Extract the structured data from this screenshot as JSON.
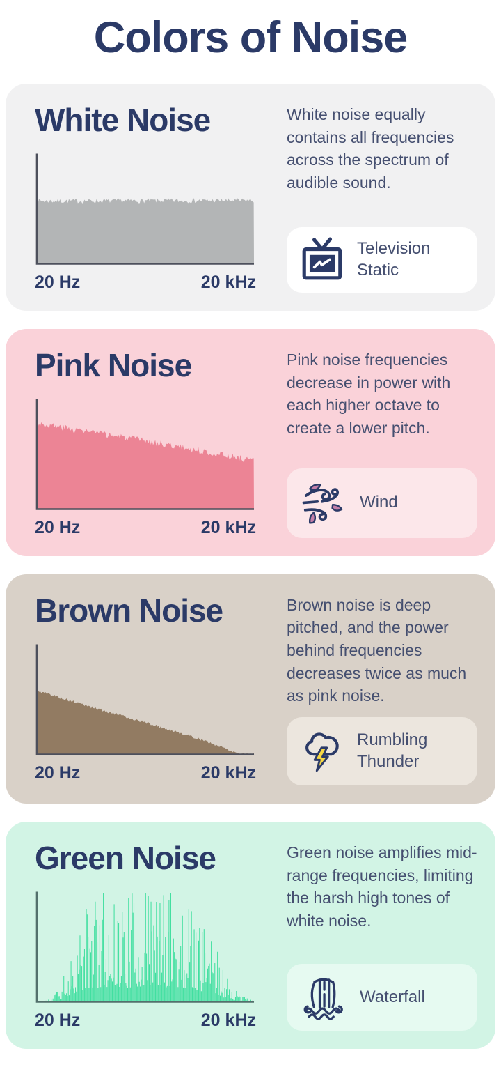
{
  "page_title": "Colors of Noise",
  "theme": {
    "background": "#ffffff",
    "heading_color": "#2b3a67",
    "text_color": "#454f70",
    "lightning_yellow": "#f7d944",
    "leaf_pink": "#c37fa9"
  },
  "sections": [
    {
      "id": "white-noise",
      "title": "White Noise",
      "description": "White noise equally contains all frequencies across the spectrum of audible sound.",
      "colors": {
        "card_bg": "#f1f1f2",
        "fill": "#b3b5b6",
        "chip_bg": "#ffffff",
        "axis": "#4d505c"
      },
      "example": {
        "icon": "television-static-icon",
        "label": "Television Static"
      },
      "chart": {
        "type": "area",
        "xlabel_left": "20 Hz",
        "xlabel_right": "20 kHz",
        "style": "jitter",
        "jitter": 0.022,
        "seed": 7,
        "envelope": [
          [
            0,
            0.57
          ],
          [
            1,
            0.575
          ]
        ]
      }
    },
    {
      "id": "pink-noise",
      "title": "Pink Noise",
      "description": "Pink noise frequencies decrease in power with each higher octave to create a lower pitch.",
      "colors": {
        "card_bg": "#fad2d9",
        "fill": "#ec8495",
        "chip_bg": "#fce7ea",
        "axis": "#4d505c"
      },
      "example": {
        "icon": "wind-icon",
        "label": "Wind"
      },
      "chart": {
        "type": "area",
        "xlabel_left": "20 Hz",
        "xlabel_right": "20 kHz",
        "style": "jitter",
        "jitter": 0.03,
        "seed": 3,
        "envelope": [
          [
            0,
            0.78
          ],
          [
            0.5,
            0.62
          ],
          [
            1,
            0.44
          ]
        ]
      }
    },
    {
      "id": "brown-noise",
      "title": "Brown Noise",
      "description": "Brown noise is deep pitched, and the power behind frequencies decreases twice as much as pink noise.",
      "colors": {
        "card_bg": "#d9d1c8",
        "fill": "#927b62",
        "chip_bg": "#ece6de",
        "axis": "#4d505c"
      },
      "example": {
        "icon": "rumbling-thunder-icon",
        "label": "Rumbling Thunder"
      },
      "chart": {
        "type": "area",
        "xlabel_left": "20 Hz",
        "xlabel_right": "20 kHz",
        "style": "jitter",
        "jitter": 0.012,
        "seed": 5,
        "envelope": [
          [
            0,
            0.58
          ],
          [
            0.25,
            0.43
          ],
          [
            0.5,
            0.29
          ],
          [
            0.75,
            0.14
          ],
          [
            0.93,
            0.01
          ],
          [
            1,
            0.004
          ]
        ]
      }
    },
    {
      "id": "green-noise",
      "title": "Green Noise",
      "description": "Green noise amplifies mid-range frequencies, limiting the harsh high tones of white noise.",
      "colors": {
        "card_bg": "#d2f4e5",
        "fill": "#41dfa0",
        "chip_bg": "#e6faf1",
        "axis": "#53706c"
      },
      "example": {
        "icon": "waterfall-icon",
        "label": "Waterfall"
      },
      "chart": {
        "type": "area",
        "xlabel_left": "20 Hz",
        "xlabel_right": "20 kHz",
        "style": "spiky",
        "jitter": 0.0,
        "seed": 11,
        "envelope": [
          [
            0,
            0.004
          ],
          [
            0.07,
            0.02
          ],
          [
            0.12,
            0.12
          ],
          [
            0.18,
            0.38
          ],
          [
            0.24,
            0.55
          ],
          [
            0.32,
            0.6
          ],
          [
            0.42,
            0.58
          ],
          [
            0.5,
            0.62
          ],
          [
            0.58,
            0.6
          ],
          [
            0.66,
            0.57
          ],
          [
            0.73,
            0.5
          ],
          [
            0.8,
            0.35
          ],
          [
            0.87,
            0.15
          ],
          [
            0.93,
            0.04
          ],
          [
            1,
            0.004
          ]
        ]
      }
    }
  ]
}
